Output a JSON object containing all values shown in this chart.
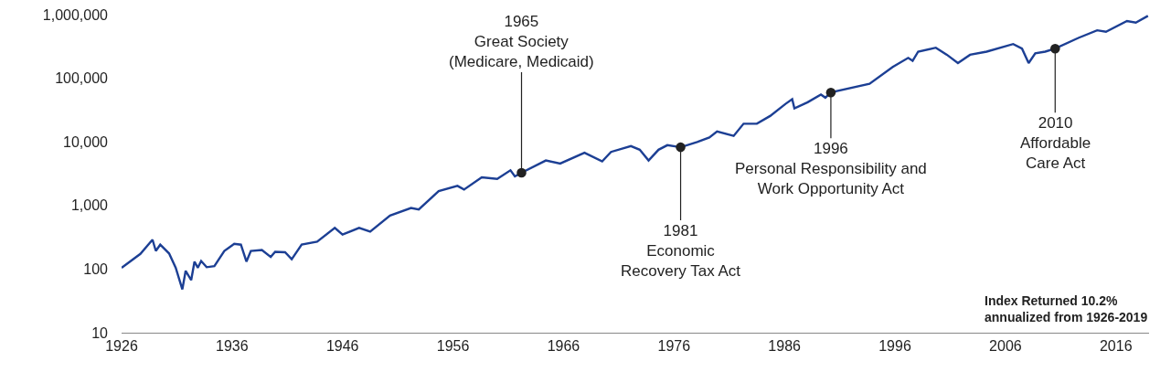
{
  "chart_data": {
    "type": "line",
    "x": [
      1926.0,
      1927.7,
      1928.8,
      1929.1,
      1929.5,
      1930.3,
      1930.9,
      1931.5,
      1931.8,
      1932.3,
      1932.6,
      1932.9,
      1933.2,
      1933.7,
      1934.4,
      1935.3,
      1936.2,
      1936.8,
      1937.3,
      1937.7,
      1938.7,
      1939.5,
      1939.9,
      1940.8,
      1941.4,
      1942.3,
      1943.7,
      1945.3,
      1946.0,
      1947.5,
      1948.5,
      1950.3,
      1952.2,
      1952.9,
      1954.7,
      1956.4,
      1957.0,
      1958.6,
      1960.0,
      1961.2,
      1961.6,
      1962.2,
      1964.4,
      1965.7,
      1967.9,
      1969.5,
      1970.3,
      1972.1,
      1972.9,
      1973.7,
      1974.6,
      1975.4,
      1976.6,
      1978.1,
      1979.2,
      1979.9,
      1981.4,
      1982.3,
      1983.5,
      1984.7,
      1986.1,
      1986.7,
      1986.9,
      1988.1,
      1989.3,
      1989.7,
      1990.2,
      1993.7,
      1995.8,
      1997.2,
      1997.6,
      1998.1,
      1999.7,
      2000.7,
      2001.7,
      2002.8,
      2004.3,
      2006.7,
      2007.5,
      2008.1,
      2008.7,
      2009.6,
      2010.5,
      2012.6,
      2014.3,
      2015.1,
      2017.0,
      2017.8,
      2018.9
    ],
    "series": [
      {
        "color": "#1c3f94",
        "values": [
          105,
          173,
          290,
          193,
          242,
          176,
          105,
          48,
          94,
          67,
          131,
          105,
          134,
          107,
          111,
          193,
          250,
          242,
          131,
          193,
          200,
          155,
          187,
          184,
          143,
          242,
          270,
          444,
          348,
          444,
          389,
          692,
          914,
          863,
          1680,
          2030,
          1780,
          2770,
          2620,
          3570,
          2860,
          3270,
          5090,
          4560,
          6730,
          4920,
          6950,
          8570,
          7520,
          5090,
          7520,
          8870,
          8220,
          9910,
          11700,
          14600,
          12400,
          19300,
          19300,
          25500,
          39600,
          46900,
          33600,
          42000,
          55300,
          49500,
          59700,
          81600,
          150000,
          209000,
          188000,
          262000,
          302000,
          234000,
          173000,
          234000,
          262000,
          345000,
          292000,
          173000,
          247000,
          262000,
          292000,
          430000,
          567000,
          537000,
          792000,
          748000,
          957000
        ]
      }
    ],
    "log": "y",
    "ylim": [
      10,
      1000000
    ],
    "yticks": [
      10,
      100,
      {
        "value": 1000,
        "label": "1,000"
      },
      {
        "value": 10000,
        "label": "10,000"
      },
      {
        "value": 100000,
        "label": "100,000"
      },
      {
        "value": 1000000,
        "label": "1,000,000"
      }
    ],
    "xlim": [
      1926,
      2019
    ],
    "xticks": [
      1926,
      1936,
      1946,
      1956,
      1966,
      1976,
      1986,
      1996,
      2006,
      2016
    ],
    "grid": false,
    "annotations": [
      {
        "text": "1965\nGreat Society\n(Medicare, Medicaid)",
        "x": 1962.2,
        "y": 3270
      },
      {
        "text": "1981\nEconomic\nRecovery Tax Act",
        "x": 1976.6,
        "y": 8220
      },
      {
        "text": "1996\nPersonal Responsibility and\nWork Opportunity Act",
        "x": 1990.2,
        "y": 59700
      },
      {
        "text": "2010\nAffordable\nCare Act",
        "x": 2010.5,
        "y": 292000
      },
      "Index Returned 10.2%\nannualized from 1926-2019"
    ]
  }
}
